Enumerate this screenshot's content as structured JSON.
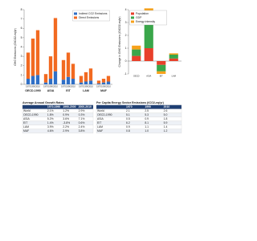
{
  "chart_data": [
    {
      "type": "bar",
      "stacked": true,
      "ylabel": "GHG Emissions (GtCO2-eq/yr)",
      "groups": [
        "OECD-1990",
        "ASIA",
        "EIT",
        "LAM",
        "MAF"
      ],
      "categories": [
        "1970",
        "1990",
        "2010",
        "1970",
        "1990",
        "2010",
        "1970",
        "1990",
        "2010",
        "1970",
        "1990",
        "2010",
        "1970",
        "1990",
        "2010"
      ],
      "series": [
        {
          "name": "Indirect CO2 Emissions",
          "color": "#2f6fc6",
          "values": [
            0.6,
            0.9,
            1.0,
            0.2,
            0.6,
            1.4,
            0.5,
            0.8,
            0.6,
            0.2,
            0.3,
            0.4,
            0.1,
            0.2,
            0.3
          ]
        },
        {
          "name": "Direct Emissions",
          "color": "#f26a21",
          "values": [
            2.8,
            4.0,
            4.8,
            0.9,
            2.4,
            5.7,
            2.1,
            2.6,
            1.6,
            0.7,
            1.0,
            1.3,
            0.3,
            0.4,
            0.6
          ]
        }
      ],
      "ylim": [
        0,
        8
      ],
      "yticks": [
        0,
        1,
        2,
        3,
        4,
        5,
        6,
        7,
        8
      ],
      "grid": false,
      "legend": "upper right"
    },
    {
      "type": "bar",
      "stacked": true,
      "ylabel": "Change in GHG Emissions (GtCO2-eq/yr)",
      "categories": [
        "OECD",
        "ASIA",
        "EIT",
        "LAM"
      ],
      "series": [
        {
          "name": "Population",
          "color": "#e8402a",
          "values": [
            0.4,
            1.0,
            -0.3,
            0.2
          ]
        },
        {
          "name": "GDP",
          "color": "#3aa64a",
          "values": [
            0.5,
            2.1,
            -0.5,
            0.3
          ]
        },
        {
          "name": "Energy intensity",
          "color": "#f7a21b",
          "values": [
            0.3,
            1.0,
            -0.2,
            0.1
          ]
        }
      ],
      "ylim": [
        -1,
        4
      ],
      "yticks": [
        -1,
        0,
        1,
        2,
        3,
        4
      ],
      "grid": false,
      "legend": "upper left"
    }
  ],
  "tables": [
    {
      "title": "Average Annual Growth Rates",
      "header": [
        "",
        "1970-1990",
        "1990-2000",
        "2000-2010"
      ],
      "rows": [
        [
          "World",
          "2.1%",
          "1.2%",
          "2.9%"
        ],
        [
          "OECD-1990",
          "1.8%",
          "0.9%",
          "0.3%"
        ],
        [
          "ASIA",
          "5.2%",
          "3.6%",
          "7.1%"
        ],
        [
          "EIT",
          "1.4%",
          "-3.8%",
          "0.6%"
        ],
        [
          "LAM",
          "3.9%",
          "2.2%",
          "2.4%"
        ],
        [
          "MAF",
          "4.6%",
          "2.9%",
          "3.8%"
        ]
      ]
    },
    {
      "title": "Per Capita Energy Sector Emissions (tCO2-eq/yr)",
      "header": [
        "",
        "1970",
        "1990",
        "2010"
      ],
      "rows": [
        [
          "World",
          "2.1",
          "2.5",
          "2.6"
        ],
        [
          "OECD-1990",
          "5.1",
          "5.3",
          "5.0"
        ],
        [
          "ASIA",
          "0.5",
          "0.9",
          "1.8"
        ],
        [
          "EIT",
          "6.2",
          "8.1",
          "5.9"
        ],
        [
          "LAM",
          "0.9",
          "1.1",
          "1.4"
        ],
        [
          "MAF",
          "0.8",
          "1.0",
          "1.2"
        ]
      ]
    }
  ]
}
